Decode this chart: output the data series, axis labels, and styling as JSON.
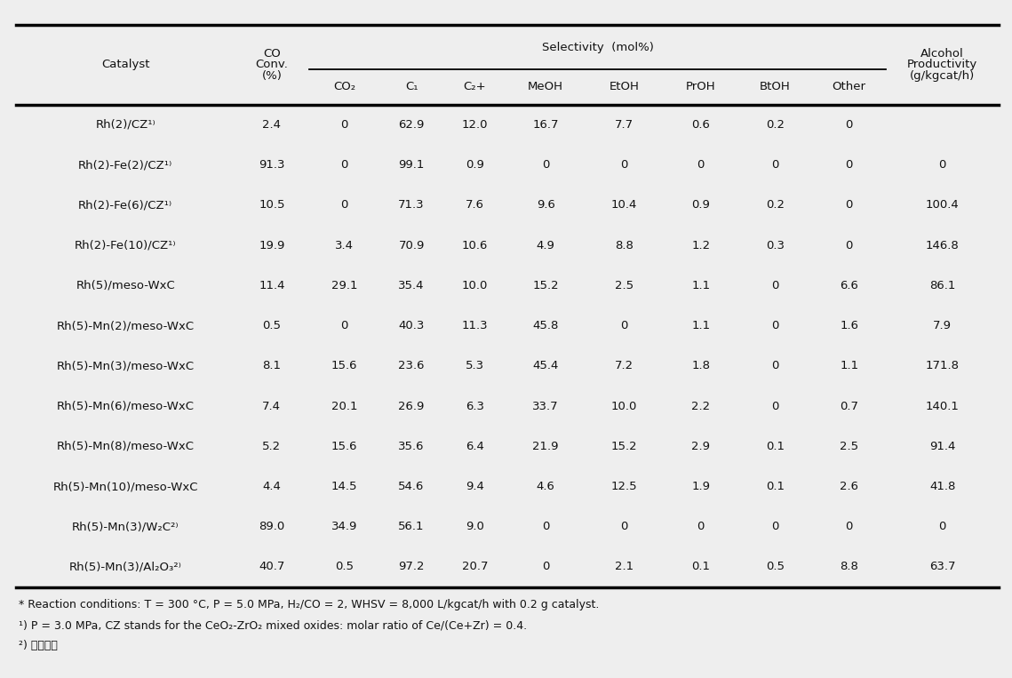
{
  "bg_color": "#eeeeee",
  "text_color": "#111111",
  "font_size": 9.5,
  "rows": [
    [
      "Rh(2)/CZ¹⁾",
      "2.4",
      "0",
      "62.9",
      "12.0",
      "16.7",
      "7.7",
      "0.6",
      "0.2",
      "0",
      ""
    ],
    [
      "Rh(2)-Fe(2)/CZ¹⁾",
      "91.3",
      "0",
      "99.1",
      "0.9",
      "0",
      "0",
      "0",
      "0",
      "0",
      "0"
    ],
    [
      "Rh(2)-Fe(6)/CZ¹⁾",
      "10.5",
      "0",
      "71.3",
      "7.6",
      "9.6",
      "10.4",
      "0.9",
      "0.2",
      "0",
      "100.4"
    ],
    [
      "Rh(2)-Fe(10)/CZ¹⁾",
      "19.9",
      "3.4",
      "70.9",
      "10.6",
      "4.9",
      "8.8",
      "1.2",
      "0.3",
      "0",
      "146.8"
    ],
    [
      "Rh(5)/meso-WxC",
      "11.4",
      "29.1",
      "35.4",
      "10.0",
      "15.2",
      "2.5",
      "1.1",
      "0",
      "6.6",
      "86.1"
    ],
    [
      "Rh(5)-Mn(2)/meso-WxC",
      "0.5",
      "0",
      "40.3",
      "11.3",
      "45.8",
      "0",
      "1.1",
      "0",
      "1.6",
      "7.9"
    ],
    [
      "Rh(5)-Mn(3)/meso-WxC",
      "8.1",
      "15.6",
      "23.6",
      "5.3",
      "45.4",
      "7.2",
      "1.8",
      "0",
      "1.1",
      "171.8"
    ],
    [
      "Rh(5)-Mn(6)/meso-WxC",
      "7.4",
      "20.1",
      "26.9",
      "6.3",
      "33.7",
      "10.0",
      "2.2",
      "0",
      "0.7",
      "140.1"
    ],
    [
      "Rh(5)-Mn(8)/meso-WxC",
      "5.2",
      "15.6",
      "35.6",
      "6.4",
      "21.9",
      "15.2",
      "2.9",
      "0.1",
      "2.5",
      "91.4"
    ],
    [
      "Rh(5)-Mn(10)/meso-WxC",
      "4.4",
      "14.5",
      "54.6",
      "9.4",
      "4.6",
      "12.5",
      "1.9",
      "0.1",
      "2.6",
      "41.8"
    ],
    [
      "Rh(5)-Mn(3)/W₂C²⁾",
      "89.0",
      "34.9",
      "56.1",
      "9.0",
      "0",
      "0",
      "0",
      "0",
      "0",
      "0"
    ],
    [
      "Rh(5)-Mn(3)/Al₂O₃²⁾",
      "40.7",
      "0.5",
      "97.2",
      "20.7",
      "0",
      "2.1",
      "0.1",
      "0.5",
      "8.8",
      "63.7"
    ]
  ],
  "footnote1": "* Reaction conditions: T = 300 °C, P = 5.0 MPa, H₂/CO = 2, WHSV = 8,000 L/kgcat/h with 0.2 g catalyst.",
  "footnote2": "¹) P = 3.0 MPa, CZ stands for the CeO₂-ZrO₂ mixed oxides: molar ratio of Ce/(Ce+Zr) = 0.4.",
  "footnote3": "²) 상용담체"
}
